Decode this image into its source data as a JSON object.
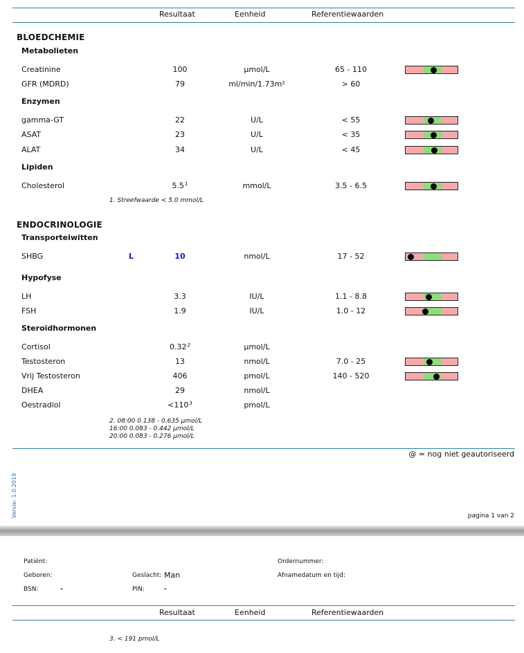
{
  "columns": {
    "result": "Resultaat",
    "unit": "Eenheid",
    "reference": "Referentiewaarden"
  },
  "sections": [
    {
      "title": "BLOEDCHEMIE",
      "groups": [
        {
          "title": "Metabolieten",
          "tests": [
            {
              "name": "Creatinine",
              "value": "100",
              "unit": "µmol/L",
              "ref": "65 - 110",
              "pos": 0.56
            },
            {
              "name": "GFR (MDRD)",
              "value": "79",
              "unit": "ml/min/1.73m²",
              "ref": "> 60"
            }
          ]
        },
        {
          "title": "Enzymen",
          "tests": [
            {
              "name": "gamma-GT",
              "value": "22",
              "unit": "U/L",
              "ref": "< 55",
              "pos": 0.42
            },
            {
              "name": "ASAT",
              "value": "23",
              "unit": "U/L",
              "ref": "< 35",
              "pos": 0.54
            },
            {
              "name": "ALAT",
              "value": "34",
              "unit": "U/L",
              "ref": "< 45",
              "pos": 0.58
            }
          ]
        },
        {
          "title": "Lipiden",
          "tests": [
            {
              "name": "Cholesterol",
              "value": "5.5",
              "sup": "1",
              "unit": "mmol/L",
              "ref": "3.5 - 6.5",
              "pos": 0.54
            }
          ]
        }
      ],
      "note": [
        "1. Streefwaarde < 5.0 mmol/L"
      ]
    },
    {
      "title": "ENDOCRINOLOGIE",
      "groups": [
        {
          "title": "Transporteiwitten",
          "tests": [
            {
              "name": "SHBG",
              "flag": "L",
              "value": "10",
              "unit": "nmol/L",
              "ref": "17 - 52",
              "pos": -0.7
            }
          ]
        },
        {
          "title": "Hypofyse",
          "tests": [
            {
              "name": "LH",
              "value": "3.3",
              "unit": "IU/L",
              "ref": "1.1 - 8.8",
              "pos": 0.28
            },
            {
              "name": "FSH",
              "value": "1.9",
              "unit": "IU/L",
              "ref": "1.0 - 12",
              "pos": 0.1
            }
          ]
        },
        {
          "title": "Steroïdhormonen",
          "tests": [
            {
              "name": "Cortisol",
              "value": "0.32",
              "sup": "2",
              "unit": "µmol/L",
              "ref": ""
            },
            {
              "name": "Testosteron",
              "value": "13",
              "unit": "nmol/L",
              "ref": "7.0 - 25",
              "pos": 0.33
            },
            {
              "name": "Vrij Testosteron",
              "value": "406",
              "unit": "pmol/L",
              "ref": "140 - 520",
              "pos": 0.7
            },
            {
              "name": "DHEA",
              "value": "29",
              "unit": "nmol/L",
              "ref": ""
            },
            {
              "name": "Oestradiol",
              "value": "<110",
              "sup": "3",
              "unit": "pmol/L",
              "ref": ""
            }
          ]
        }
      ],
      "note": [
        "2. 08:00 0.138 - 0.635 µmol/L",
        "16:00 0.083 - 0.442 µmol/L",
        "20:00 0.083 - 0.276 µmol/L"
      ]
    }
  ],
  "footer": {
    "authorized_note": "@ = nog niet geautoriseerd",
    "page": "pagina 1 van 2"
  },
  "vertical_text": "Versie: 1.0.2019",
  "patient": {
    "patient_label": "Patiënt:",
    "born_label": "Geboren:",
    "bsn_label": "BSN:",
    "bsn_value": "-",
    "gender_label": "Geslacht:",
    "gender_value": "Man",
    "pin_label": "PIN:",
    "pin_value": "-",
    "order_label": "Ordernummer:",
    "collected_label": "Afnamedatum en tijd:"
  },
  "page2_note": "3. < 191 pmol/L"
}
